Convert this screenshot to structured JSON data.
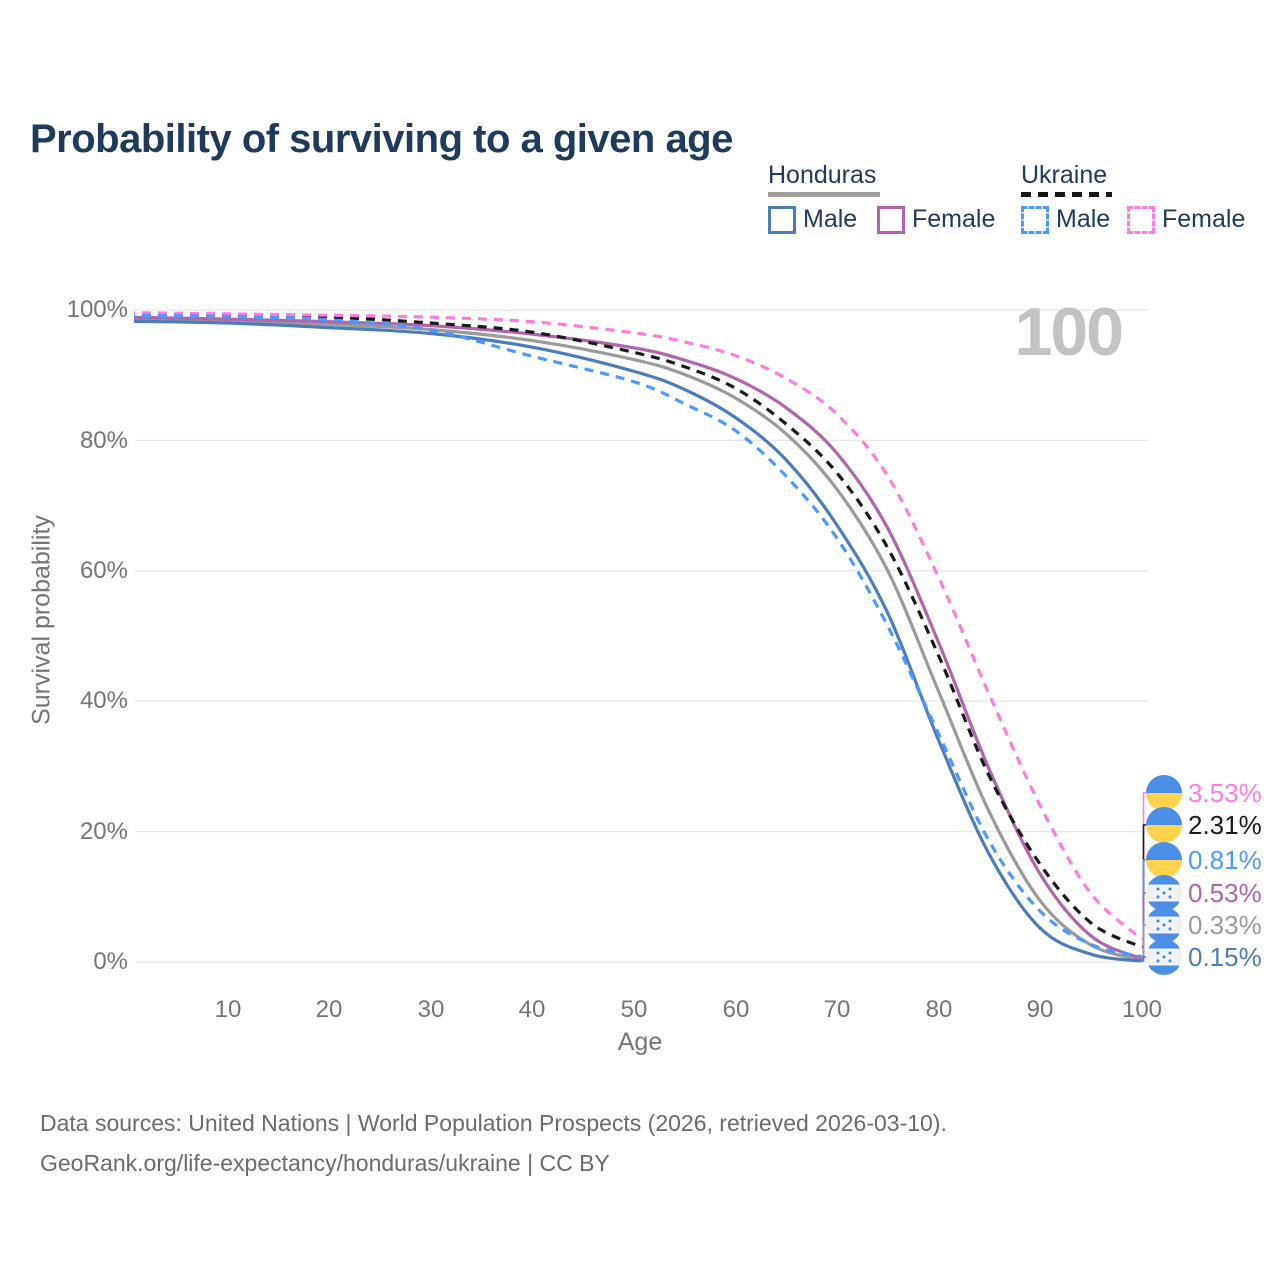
{
  "header": {
    "title": "Probability of surviving to a given age"
  },
  "legend": {
    "groups": [
      {
        "label": "Honduras",
        "line_style": "solid",
        "underline_color": "#9e9e9e",
        "items": [
          {
            "label": "Male",
            "color": "#4a7ebb"
          },
          {
            "label": "Female",
            "color": "#b264ae"
          }
        ]
      },
      {
        "label": "Ukraine",
        "line_style": "dashed",
        "underline_color": "#161616",
        "items": [
          {
            "label": "Male",
            "color": "#4a9aff"
          },
          {
            "label": "Female",
            "color": "#ff7ce4"
          }
        ]
      }
    ]
  },
  "chart_data": {
    "type": "line",
    "title": "Probability of surviving to a given age",
    "xlabel": "Age",
    "ylabel": "Survival probability",
    "xlim": [
      0,
      100
    ],
    "ylim": [
      0,
      100
    ],
    "grid": "horizontal-only",
    "legend_position": "top-right",
    "hover_age_watermark": "100",
    "xtick_labels": [
      "10",
      "20",
      "30",
      "40",
      "50",
      "60",
      "70",
      "80",
      "90",
      "100"
    ],
    "xticks": [
      10,
      20,
      30,
      40,
      50,
      60,
      70,
      80,
      90,
      100
    ],
    "ytick_labels": [
      "0%",
      "20%",
      "40%",
      "60%",
      "80%",
      "100%"
    ],
    "yticks": [
      0,
      20,
      40,
      60,
      80,
      100
    ],
    "x_ages": [
      0,
      10,
      20,
      30,
      40,
      50,
      55,
      60,
      65,
      70,
      75,
      80,
      85,
      90,
      95,
      100
    ],
    "series": [
      {
        "key": "honduras_all",
        "name": "Honduras (both sexes)",
        "country": "Honduras",
        "line": "solid",
        "color": "#9a9a9a",
        "values": [
          98.6,
          98.3,
          97.8,
          97.0,
          95.3,
          92.4,
          90.1,
          86.5,
          81.0,
          72.5,
          60.0,
          41.5,
          23.0,
          9.4,
          2.6,
          0.33
        ]
      },
      {
        "key": "honduras_female",
        "name": "Honduras Female",
        "country": "Honduras",
        "line": "solid",
        "color": "#b264ae",
        "values": [
          98.9,
          98.6,
          98.2,
          97.6,
          96.3,
          94.2,
          92.3,
          89.5,
          85.0,
          78.0,
          66.5,
          49.0,
          29.5,
          13.5,
          4.0,
          0.53
        ]
      },
      {
        "key": "honduras_male",
        "name": "Honduras Male",
        "country": "Honduras",
        "line": "solid",
        "color": "#4a7ebb",
        "values": [
          98.3,
          98.0,
          97.3,
          96.4,
          94.3,
          90.6,
          87.8,
          83.5,
          77.0,
          67.0,
          53.5,
          34.0,
          16.5,
          5.2,
          1.2,
          0.15
        ]
      },
      {
        "key": "ukraine_all",
        "name": "Ukraine (both sexes)",
        "country": "Ukraine",
        "line": "dashed",
        "color": "#1a1a1a",
        "values": [
          99.4,
          99.2,
          98.9,
          98.0,
          96.6,
          93.5,
          91.3,
          88.0,
          82.5,
          75.0,
          63.5,
          47.0,
          28.5,
          15.0,
          6.0,
          2.31
        ]
      },
      {
        "key": "ukraine_female",
        "name": "Ukraine Female",
        "country": "Ukraine",
        "line": "dashed",
        "color": "#ff7ce4",
        "values": [
          99.6,
          99.4,
          99.2,
          98.9,
          98.2,
          96.5,
          95.1,
          93.0,
          89.5,
          84.0,
          74.5,
          59.0,
          41.0,
          24.0,
          10.5,
          3.53
        ]
      },
      {
        "key": "ukraine_male",
        "name": "Ukraine Male",
        "country": "Ukraine",
        "line": "dashed",
        "color": "#4a9aff",
        "values": [
          99.2,
          99.0,
          98.5,
          96.9,
          92.9,
          89.0,
          85.6,
          81.5,
          74.5,
          65.0,
          51.5,
          35.0,
          18.5,
          7.8,
          2.7,
          0.81
        ]
      }
    ],
    "end_labels": [
      {
        "value": "3.53%",
        "color": "#ff7ce4",
        "flag": "ukraine",
        "series": "ukraine_female"
      },
      {
        "value": "2.31%",
        "color": "#1a1a1a",
        "flag": "ukraine",
        "series": "ukraine_all"
      },
      {
        "value": "0.81%",
        "color": "#4a9aff",
        "flag": "ukraine",
        "series": "ukraine_male"
      },
      {
        "value": "0.53%",
        "color": "#b264ae",
        "flag": "honduras",
        "series": "honduras_female"
      },
      {
        "value": "0.33%",
        "color": "#9a9a9a",
        "flag": "honduras",
        "series": "honduras_all"
      },
      {
        "value": "0.15%",
        "color": "#4a7ebb",
        "flag": "honduras",
        "series": "honduras_male"
      }
    ]
  },
  "footer": {
    "line1": "Data sources: United Nations | World Population Prospects (2026, retrieved 2026-03-10).",
    "line2": "GeoRank.org/life-expectancy/honduras/ukraine | CC BY"
  }
}
